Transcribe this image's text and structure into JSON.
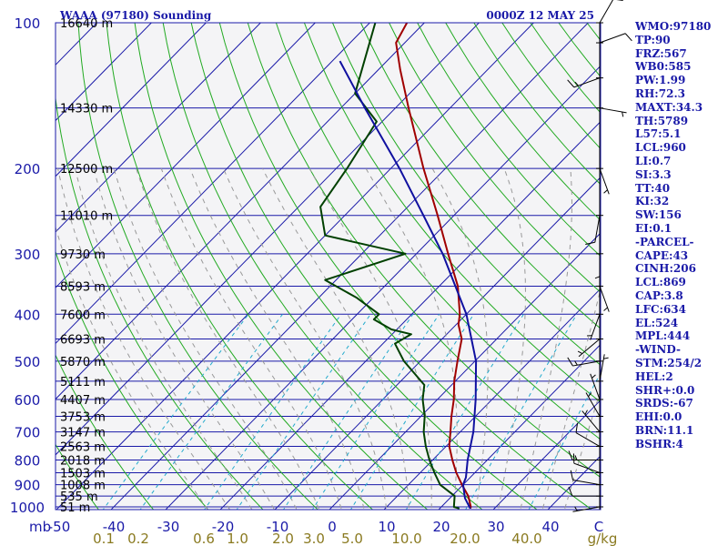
{
  "header": {
    "station": "WAAA (97180) Sounding",
    "time": "0000Z 12 MAY 25"
  },
  "indices": [
    "WMO:97180",
    "TP:90",
    "FRZ:567",
    "WB0:585",
    "PW:1.99",
    "RH:72.3",
    "MAXT:34.3",
    "TH:5789",
    "L57:5.1",
    "LCL:960",
    "LI:0.7",
    "SI:3.3",
    "TT:40",
    "KI:32",
    "SW:156",
    "EI:0.1",
    "-PARCEL-",
    "CAPE:43",
    "CINH:206",
    "LCL:869",
    "CAP:3.8",
    "LFC:634",
    "EL:524",
    "MPL:444",
    "-WIND-",
    "STM:254/2",
    "HEL:2",
    "SHR+:0.0",
    "SRDS:-67",
    "EHI:0.0",
    "BRN:11.1",
    "BSHR:4"
  ],
  "chart_data": {
    "type": "skew-t",
    "title": "WAAA (97180) Sounding",
    "subtitle": "0000Z 12 MAY 25",
    "xlabel": "mb",
    "x_unit": "C",
    "mixing_ratio_unit": "g/kg",
    "pressure_levels": [
      100,
      200,
      300,
      400,
      500,
      600,
      700,
      800,
      900,
      1000
    ],
    "temperature_ticks": [
      -50,
      -40,
      -30,
      -20,
      -10,
      0,
      10,
      20,
      30,
      40
    ],
    "mixing_ratio_labels": [
      "0.1",
      "0.2",
      "0.6",
      "1.0",
      "2.0",
      "3.0",
      "5.0",
      "10.0",
      "20.0",
      "40.0"
    ],
    "heights": [
      {
        "p": 100,
        "label": "16640 m"
      },
      {
        "p": 150,
        "label": "14330 m"
      },
      {
        "p": 200,
        "label": "12500 m"
      },
      {
        "p": 250,
        "label": "11010 m"
      },
      {
        "p": 300,
        "label": "9730 m"
      },
      {
        "p": 350,
        "label": "8593 m"
      },
      {
        "p": 400,
        "label": "7600 m"
      },
      {
        "p": 450,
        "label": "6693 m"
      },
      {
        "p": 500,
        "label": "5870 m"
      },
      {
        "p": 550,
        "label": "5111 m"
      },
      {
        "p": 600,
        "label": "4407 m"
      },
      {
        "p": 650,
        "label": "3753 m"
      },
      {
        "p": 700,
        "label": "3147 m"
      },
      {
        "p": 750,
        "label": "2563 m"
      },
      {
        "p": 800,
        "label": "2018 m"
      },
      {
        "p": 850,
        "label": "1503 m"
      },
      {
        "p": 900,
        "label": "1008 m"
      },
      {
        "p": 950,
        "label": "535 m"
      },
      {
        "p": 1000,
        "label": "51 m"
      }
    ],
    "series": [
      {
        "id": "temperature",
        "color": "#a00000",
        "points": [
          {
            "p": 1008,
            "t": 25.6
          },
          {
            "p": 1000,
            "t": 25.4
          },
          {
            "p": 950,
            "t": 23.0
          },
          {
            "p": 900,
            "t": 19.8
          },
          {
            "p": 850,
            "t": 16.6
          },
          {
            "p": 800,
            "t": 13.6
          },
          {
            "p": 750,
            "t": 10.6
          },
          {
            "p": 700,
            "t": 8.2
          },
          {
            "p": 650,
            "t": 5.6
          },
          {
            "p": 600,
            "t": 3.0
          },
          {
            "p": 550,
            "t": -0.2
          },
          {
            "p": 500,
            "t": -3.2
          },
          {
            "p": 450,
            "t": -6.4
          },
          {
            "p": 420,
            "t": -9.6
          },
          {
            "p": 400,
            "t": -11.2
          },
          {
            "p": 350,
            "t": -16.6
          },
          {
            "p": 300,
            "t": -24.2
          },
          {
            "p": 250,
            "t": -33.0
          },
          {
            "p": 200,
            "t": -44.0
          },
          {
            "p": 150,
            "t": -57.6
          },
          {
            "p": 125,
            "t": -66.0
          },
          {
            "p": 110,
            "t": -71.6
          },
          {
            "p": 100,
            "t": -73.2
          }
        ]
      },
      {
        "id": "dewpoint",
        "color": "#004000",
        "points": [
          {
            "p": 1008,
            "t": 23.6
          },
          {
            "p": 1000,
            "t": 22.3
          },
          {
            "p": 950,
            "t": 20.5
          },
          {
            "p": 900,
            "t": 15.8
          },
          {
            "p": 850,
            "t": 12.6
          },
          {
            "p": 800,
            "t": 9.4
          },
          {
            "p": 750,
            "t": 6.3
          },
          {
            "p": 700,
            "t": 3.3
          },
          {
            "p": 650,
            "t": 0.7
          },
          {
            "p": 600,
            "t": -2.7
          },
          {
            "p": 560,
            "t": -5.0
          },
          {
            "p": 500,
            "t": -13.0
          },
          {
            "p": 460,
            "t": -17.8
          },
          {
            "p": 440,
            "t": -16.5
          },
          {
            "p": 430,
            "t": -21.0
          },
          {
            "p": 410,
            "t": -26.0
          },
          {
            "p": 400,
            "t": -26.0
          },
          {
            "p": 370,
            "t": -33.0
          },
          {
            "p": 340,
            "t": -42.0
          },
          {
            "p": 300,
            "t": -32.0
          },
          {
            "p": 275,
            "t": -50.0
          },
          {
            "p": 240,
            "t": -56.0
          },
          {
            "p": 200,
            "t": -58.0
          },
          {
            "p": 160,
            "t": -61.0
          },
          {
            "p": 140,
            "t": -70.0
          },
          {
            "p": 100,
            "t": -79.0
          }
        ]
      },
      {
        "id": "parcel",
        "color": "#1010a0",
        "points": [
          {
            "p": 1008,
            "t": 25.6
          },
          {
            "p": 960,
            "t": 22.8
          },
          {
            "p": 900,
            "t": 20.0
          },
          {
            "p": 869,
            "t": 19.2
          },
          {
            "p": 800,
            "t": 16.4
          },
          {
            "p": 700,
            "t": 12.4
          },
          {
            "p": 600,
            "t": 7.0
          },
          {
            "p": 500,
            "t": 0.2
          },
          {
            "p": 400,
            "t": -10.0
          },
          {
            "p": 300,
            "t": -25.2
          },
          {
            "p": 250,
            "t": -35.6
          },
          {
            "p": 200,
            "t": -48.4
          },
          {
            "p": 150,
            "t": -65.6
          },
          {
            "p": 120,
            "t": -78.6
          }
        ]
      }
    ],
    "wind_barbs": [
      {
        "p": 1000,
        "dir": 260,
        "spd": 5
      },
      {
        "p": 950,
        "dir": 270,
        "spd": 10
      },
      {
        "p": 900,
        "dir": 280,
        "spd": 10
      },
      {
        "p": 850,
        "dir": 290,
        "spd": 10
      },
      {
        "p": 800,
        "dir": 270,
        "spd": 15
      },
      {
        "p": 750,
        "dir": 300,
        "spd": 10
      },
      {
        "p": 700,
        "dir": 320,
        "spd": 5
      },
      {
        "p": 650,
        "dir": 330,
        "spd": 5
      },
      {
        "p": 600,
        "dir": 340,
        "spd": 5
      },
      {
        "p": 550,
        "dir": 10,
        "spd": 5
      },
      {
        "p": 500,
        "dir": 260,
        "spd": 15
      },
      {
        "p": 450,
        "dir": 230,
        "spd": 5
      },
      {
        "p": 400,
        "dir": 200,
        "spd": 5
      },
      {
        "p": 350,
        "dir": 160,
        "spd": 5
      },
      {
        "p": 300,
        "dir": 180,
        "spd": 5
      },
      {
        "p": 250,
        "dir": 190,
        "spd": 10
      },
      {
        "p": 200,
        "dir": 160,
        "spd": 5
      },
      {
        "p": 150,
        "dir": 100,
        "spd": 5
      },
      {
        "p": 130,
        "dir": 250,
        "spd": 15
      },
      {
        "p": 110,
        "dir": 70,
        "spd": 10
      },
      {
        "p": 100,
        "dir": 30,
        "spd": 10
      }
    ],
    "colors": {
      "isobar": "#1a1aa8",
      "isotherm": "#1a1aa8",
      "dry_adiabat": "#22aa22",
      "moist_adiabat": "#999999",
      "mixing_ratio": "#22aacc",
      "background": "#f4f4f6"
    }
  }
}
